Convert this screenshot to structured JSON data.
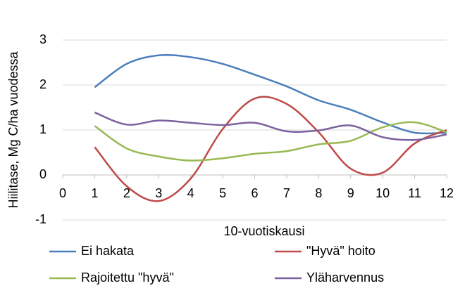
{
  "chart_data": {
    "type": "line",
    "x_label": "10-vuotiskausi",
    "y_label": "Hiilitase, Mg C/ha vuodessa",
    "x": [
      1,
      2,
      3,
      4,
      5,
      6,
      7,
      8,
      9,
      10,
      11,
      12
    ],
    "xlim": [
      0,
      12
    ],
    "xticks": [
      0,
      1,
      2,
      3,
      4,
      5,
      6,
      7,
      8,
      9,
      10,
      11,
      12
    ],
    "ylim": [
      -1,
      3
    ],
    "yticks": [
      -1,
      0,
      1,
      2,
      3
    ],
    "grid": true,
    "series": [
      {
        "name": "Ei hakata",
        "color": "#4a7ebb",
        "values": [
          1.95,
          2.47,
          2.66,
          2.62,
          2.47,
          2.23,
          1.97,
          1.66,
          1.45,
          1.17,
          0.94,
          0.94
        ]
      },
      {
        "name": "\"Hyvä\" hoito",
        "color": "#be4b48",
        "values": [
          0.62,
          -0.25,
          -0.58,
          -0.08,
          1.02,
          1.7,
          1.58,
          0.95,
          0.14,
          0.05,
          0.7,
          1.0
        ]
      },
      {
        "name": "Rajoitettu \"hyvä\"",
        "color": "#98b954",
        "values": [
          1.09,
          0.59,
          0.41,
          0.32,
          0.37,
          0.47,
          0.53,
          0.68,
          0.76,
          1.06,
          1.17,
          0.95
        ]
      },
      {
        "name": "Yläharvennus",
        "color": "#7d60a0",
        "values": [
          1.39,
          1.12,
          1.21,
          1.16,
          1.11,
          1.16,
          0.97,
          0.99,
          1.1,
          0.84,
          0.78,
          0.9
        ]
      }
    ]
  }
}
